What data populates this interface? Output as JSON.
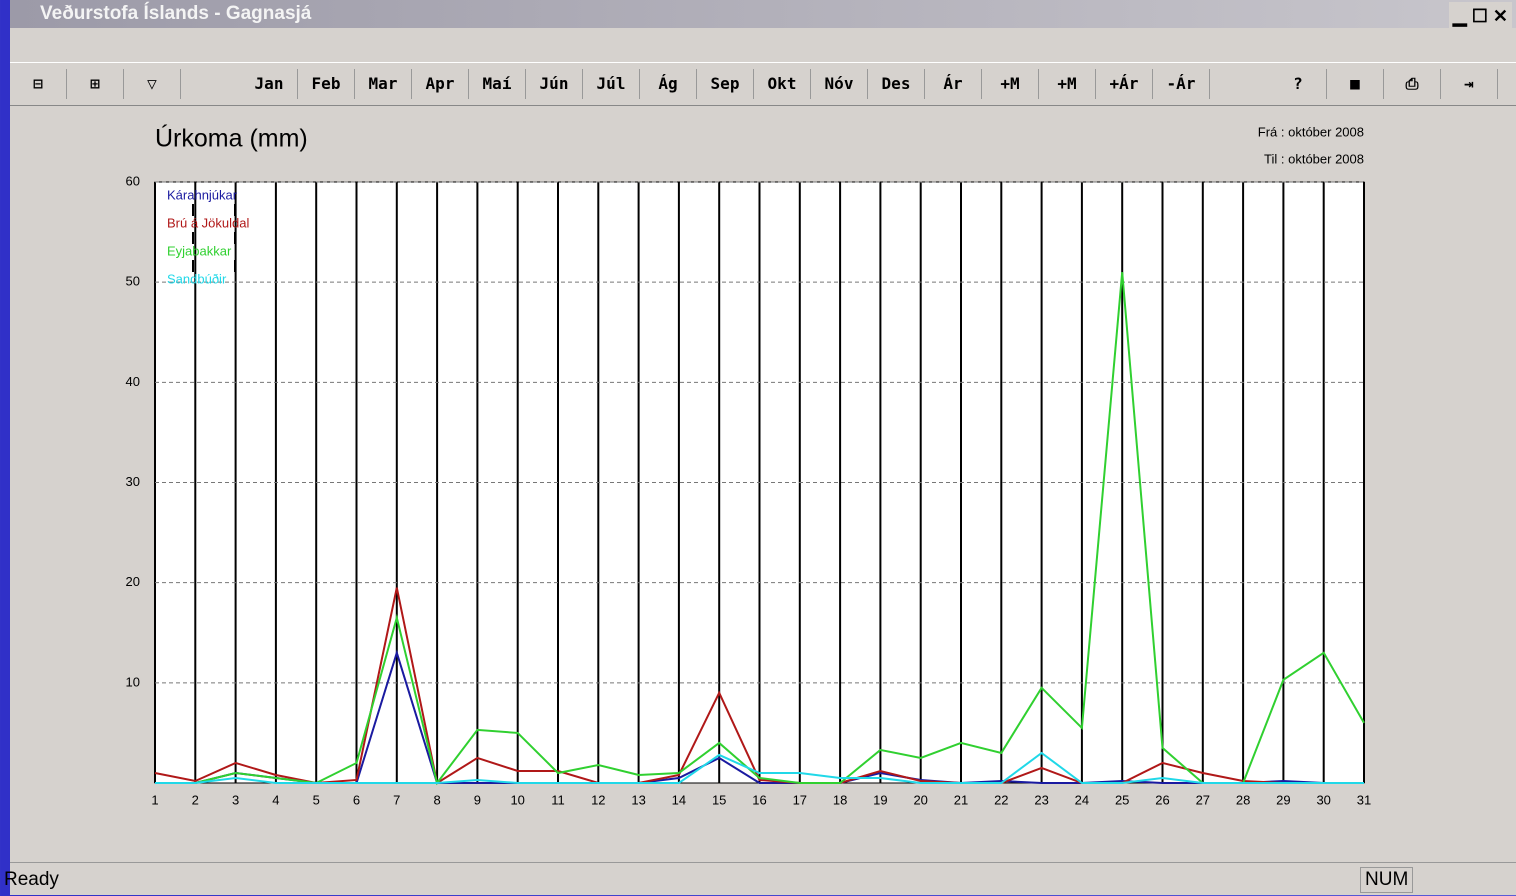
{
  "window": {
    "title": "Veðurstofa Íslands - Gagnasjá"
  },
  "toolbar": {
    "buttons": [
      "Jan",
      "Feb",
      "Mar",
      "Apr",
      "Maí",
      "Jún",
      "Júl",
      "Ág",
      "Sep",
      "Okt",
      "Nóv",
      "Des",
      "Ár",
      "+M",
      "+M",
      "+Ár",
      "-Ár"
    ]
  },
  "chart_data": {
    "type": "line",
    "title": "Úrkoma (mm)",
    "annotations": [
      "Frá : október 2008",
      "Til : október 2008"
    ],
    "x": [
      1,
      2,
      3,
      4,
      5,
      6,
      7,
      8,
      9,
      10,
      11,
      12,
      13,
      14,
      15,
      16,
      17,
      18,
      19,
      20,
      21,
      22,
      23,
      24,
      25,
      26,
      27,
      28,
      29,
      30,
      31
    ],
    "xlim": [
      1,
      31
    ],
    "xticks": [
      1,
      2,
      3,
      4,
      5,
      6,
      7,
      8,
      9,
      10,
      11,
      12,
      13,
      14,
      15,
      16,
      17,
      18,
      19,
      20,
      21,
      22,
      23,
      24,
      25,
      26,
      27,
      28,
      29,
      30,
      31
    ],
    "ylim": [
      0,
      60
    ],
    "yticks": [
      10,
      20,
      30,
      40,
      50,
      60
    ],
    "grid": true,
    "legend": "upper left",
    "series": [
      {
        "name": "Kárahnjúkar",
        "color": "#1a1aa0",
        "values": [
          0,
          0,
          1,
          0.5,
          0,
          0,
          13,
          0,
          0,
          0,
          0,
          0,
          0,
          0.5,
          2.5,
          0,
          0,
          0,
          1,
          0.3,
          0,
          0.2,
          0,
          0,
          0.2,
          0,
          0,
          0,
          0.2,
          0,
          0
        ]
      },
      {
        "name": "Brú á Jökuldal",
        "color": "#b01818",
        "values": [
          1,
          0.2,
          2,
          0.8,
          0,
          0.3,
          19.5,
          0,
          2.5,
          1.2,
          1.2,
          0,
          0,
          0.8,
          9,
          0.3,
          0,
          0,
          1.2,
          0.2,
          0,
          0,
          1.5,
          0,
          0,
          2,
          1,
          0.2,
          0,
          0,
          0
        ]
      },
      {
        "name": "Eyjabakkar",
        "color": "#30d030",
        "values": [
          0,
          0,
          1,
          0.5,
          0,
          2,
          16.5,
          0,
          5.3,
          5,
          1,
          1.8,
          0.8,
          1,
          4,
          0.5,
          0,
          0,
          3.3,
          2.5,
          4,
          3,
          9.5,
          5.5,
          51,
          3.5,
          0,
          0,
          10.3,
          13,
          6
        ]
      },
      {
        "name": "Sandbúðir",
        "color": "#20d8e8",
        "values": [
          0,
          0,
          0.5,
          0,
          0,
          0,
          0,
          0,
          0.3,
          0,
          0,
          0,
          0,
          0,
          2.8,
          1,
          1,
          0.5,
          0.5,
          0,
          0,
          0,
          3,
          0,
          0,
          0.5,
          0,
          0,
          0,
          0,
          0
        ]
      }
    ]
  },
  "status": {
    "left": "Ready",
    "indicator": "NUM"
  }
}
